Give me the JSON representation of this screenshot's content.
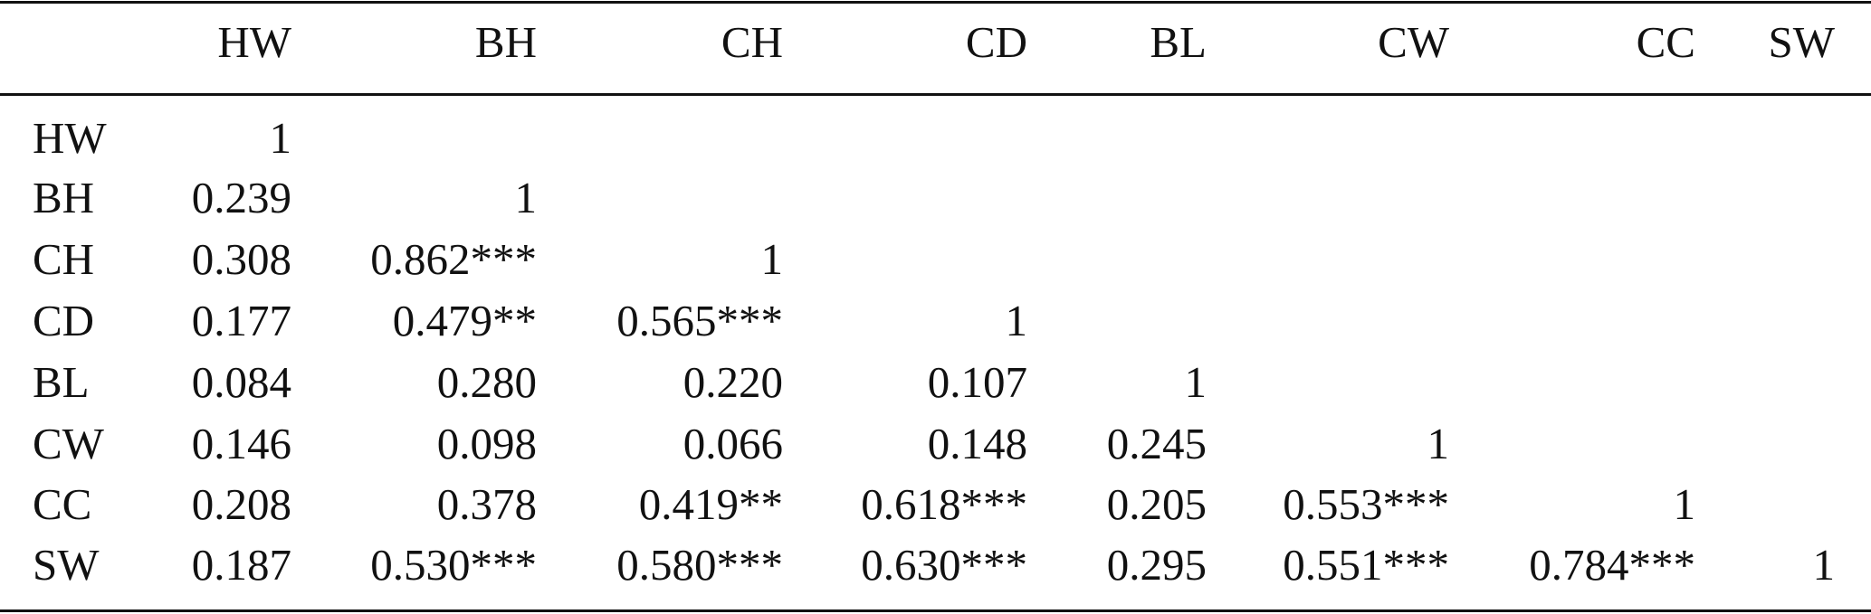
{
  "table": {
    "column_headers": [
      "HW",
      "BH",
      "CH",
      "CD",
      "BL",
      "CW",
      "CC",
      "SW"
    ],
    "rows": [
      {
        "label": "HW",
        "cells": [
          "1",
          "",
          "",
          "",
          "",
          "",
          "",
          ""
        ]
      },
      {
        "label": "BH",
        "cells": [
          "0.239",
          "1",
          "",
          "",
          "",
          "",
          "",
          ""
        ]
      },
      {
        "label": "CH",
        "cells": [
          "0.308",
          "0.862***",
          "1",
          "",
          "",
          "",
          "",
          ""
        ]
      },
      {
        "label": "CD",
        "cells": [
          "0.177",
          "0.479**",
          "0.565***",
          "1",
          "",
          "",
          "",
          ""
        ]
      },
      {
        "label": "BL",
        "cells": [
          "0.084",
          "0.280",
          "0.220",
          "0.107",
          "1",
          "",
          "",
          ""
        ]
      },
      {
        "label": "CW",
        "cells": [
          "0.146",
          "0.098",
          "0.066",
          "0.148",
          "0.245",
          "1",
          "",
          ""
        ]
      },
      {
        "label": "CC",
        "cells": [
          "0.208",
          "0.378",
          "0.419**",
          "0.618***",
          "0.205",
          "0.553***",
          "1",
          ""
        ]
      },
      {
        "label": "SW",
        "cells": [
          "0.187",
          "0.530***",
          "0.580***",
          "0.630***",
          "0.295",
          "0.551***",
          "0.784***",
          "1"
        ]
      }
    ]
  }
}
